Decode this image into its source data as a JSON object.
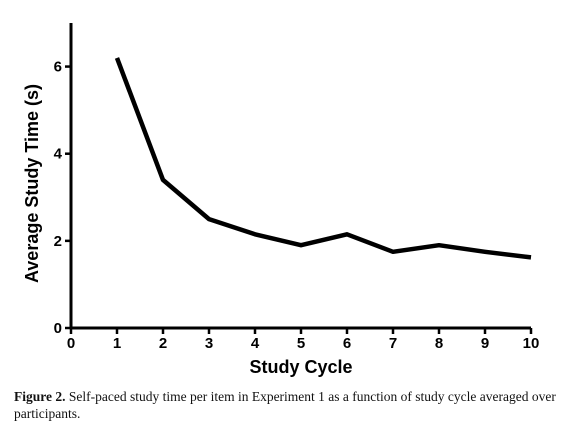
{
  "chart_data": {
    "type": "line",
    "title": "",
    "xlabel": "Study Cycle",
    "ylabel": "Average Study Time (s)",
    "x": [
      1,
      2,
      3,
      4,
      5,
      6,
      7,
      8,
      9,
      10
    ],
    "series": [
      {
        "values": [
          6.2,
          3.4,
          2.5,
          2.15,
          1.9,
          2.15,
          1.75,
          1.9,
          1.75,
          1.62
        ]
      }
    ],
    "xlim": [
      0,
      10
    ],
    "ylim": [
      0,
      7
    ],
    "xticks": [
      0,
      1,
      2,
      3,
      4,
      5,
      6,
      7,
      8,
      9,
      10
    ],
    "yticks": [
      0,
      2,
      4,
      6
    ],
    "grid": false,
    "line_color": "#000000"
  },
  "caption": {
    "label": "Figure 2.",
    "text": " Self-paced study time per item in Experiment 1 as a function of study cycle averaged over participants."
  }
}
